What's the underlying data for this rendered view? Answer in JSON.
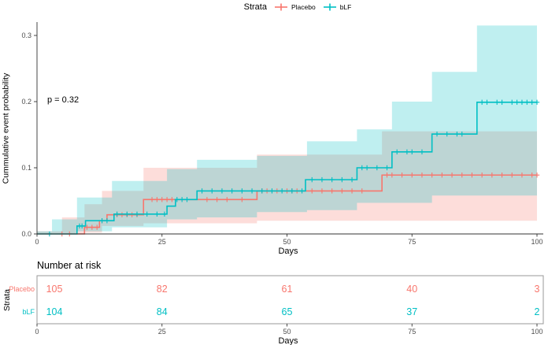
{
  "colors": {
    "placebo": "#F8766D",
    "blf": "#00BFC4",
    "axis_text": "#4d4d4d",
    "axis_line": "#333333",
    "table_border": "#999999",
    "band_opacity": 0.25
  },
  "legend": {
    "title": "Strata",
    "items": [
      {
        "label": "Placebo",
        "color": "#F8766D"
      },
      {
        "label": "bLF",
        "color": "#00BFC4"
      }
    ]
  },
  "annotation": {
    "p_value": "p = 0.32"
  },
  "axes": {
    "x_label": "Days",
    "y_label": "Cummulative event probability",
    "x_ticks": [
      0,
      25,
      50,
      75,
      100
    ],
    "y_ticks": [
      "0.0",
      "0.1",
      "0.2",
      "0.3"
    ],
    "x_range": [
      0,
      100
    ],
    "y_range": [
      0,
      0.32
    ]
  },
  "chart_data": {
    "type": "line",
    "subtype": "cumulative-incidence-step-with-ci",
    "title": "",
    "xlabel": "Days",
    "ylabel": "Cummulative event probability",
    "xlim": [
      0,
      100
    ],
    "ylim": [
      0,
      0.32
    ],
    "grid": false,
    "legend_position": "top",
    "p_value_text": "p = 0.32",
    "series": [
      {
        "name": "Placebo",
        "color": "#F8766D",
        "steps": [
          [
            0,
            0
          ],
          [
            9.5,
            0.01
          ],
          [
            12.5,
            0.02
          ],
          [
            14,
            0.029
          ],
          [
            21.3,
            0.052
          ],
          [
            44,
            0.065
          ],
          [
            69,
            0.089
          ],
          [
            100,
            0.089
          ]
        ],
        "censor_days": [
          5,
          6.5,
          10,
          11,
          12,
          13,
          16,
          17,
          18,
          19,
          20,
          23,
          24,
          25,
          26,
          27,
          34,
          36,
          38,
          41,
          45,
          46,
          48,
          50,
          51,
          52,
          55,
          57,
          59,
          61,
          63,
          65,
          70,
          71,
          73,
          75,
          77,
          79,
          81,
          83,
          85,
          87,
          89,
          91,
          93,
          95,
          97,
          99,
          100
        ],
        "ci_band": [
          [
            0,
            0,
            0.004
          ],
          [
            5,
            0,
            0.025
          ],
          [
            9.5,
            0,
            0.045
          ],
          [
            13,
            0.002,
            0.065
          ],
          [
            21.3,
            0.012,
            0.1
          ],
          [
            44,
            0.016,
            0.12
          ],
          [
            69,
            0.02,
            0.155
          ],
          [
            100,
            0.02,
            0.155
          ]
        ]
      },
      {
        "name": "bLF",
        "color": "#00BFC4",
        "steps": [
          [
            0,
            0
          ],
          [
            8,
            0.012
          ],
          [
            9.7,
            0.02
          ],
          [
            15.4,
            0.03
          ],
          [
            26,
            0.042
          ],
          [
            27.7,
            0.052
          ],
          [
            32,
            0.065
          ],
          [
            53.7,
            0.082
          ],
          [
            64,
            0.1
          ],
          [
            71,
            0.124
          ],
          [
            79,
            0.151
          ],
          [
            88,
            0.199
          ],
          [
            100,
            0.199
          ]
        ],
        "censor_days": [
          2.5,
          8.5,
          9,
          13,
          14,
          16,
          18,
          20,
          22,
          24,
          25.5,
          28,
          29,
          30,
          33,
          35,
          37,
          39,
          41,
          43,
          45,
          47,
          49,
          51,
          53,
          55,
          57,
          59,
          61,
          63,
          65,
          66,
          68,
          70,
          72,
          74,
          75,
          77,
          80,
          82,
          84,
          85,
          89,
          90,
          92,
          93,
          95,
          96,
          97,
          98,
          99,
          100
        ],
        "ci_band": [
          [
            0,
            0,
            0.004
          ],
          [
            3,
            0,
            0.022
          ],
          [
            8,
            0.001,
            0.055
          ],
          [
            15,
            0.004,
            0.08
          ],
          [
            26,
            0.01,
            0.098
          ],
          [
            32,
            0.022,
            0.112
          ],
          [
            44,
            0.025,
            0.118
          ],
          [
            54,
            0.033,
            0.14
          ],
          [
            64,
            0.036,
            0.158
          ],
          [
            71,
            0.047,
            0.2
          ],
          [
            79,
            0.047,
            0.245
          ],
          [
            88,
            0.058,
            0.315
          ],
          [
            100,
            0.058,
            0.315
          ]
        ]
      }
    ]
  },
  "risk_table": {
    "title": "Number at risk",
    "y_axis_label": "Strata",
    "x_label": "Days",
    "x_ticks": [
      0,
      25,
      50,
      75,
      100
    ],
    "rows": [
      {
        "label": "Placebo",
        "color": "#F8766D",
        "values": [
          105,
          82,
          61,
          40,
          3
        ]
      },
      {
        "label": "bLF",
        "color": "#00BFC4",
        "values": [
          104,
          84,
          65,
          37,
          2
        ]
      }
    ]
  }
}
